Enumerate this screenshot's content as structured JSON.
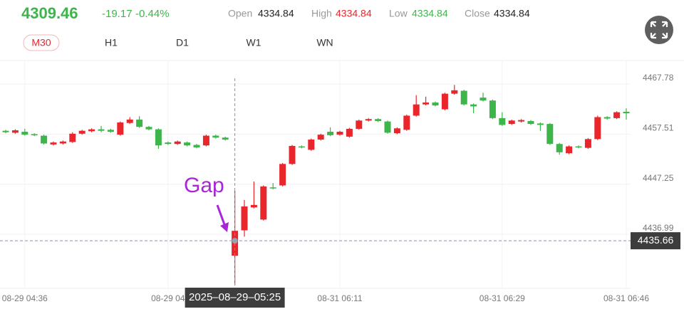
{
  "header": {
    "price": "4309.46",
    "change": "-19.17",
    "change_pct": "-0.44%",
    "stats": [
      {
        "label": "Open",
        "value": "4334.84"
      },
      {
        "label": "High",
        "value": "4334.84"
      },
      {
        "label": "Low",
        "value": "4334.84"
      },
      {
        "label": "Close",
        "value": "4334.84"
      }
    ],
    "timeframes": [
      "M30",
      "H1",
      "D1",
      "W1",
      "WN"
    ]
  },
  "chart_data": {
    "type": "candlestick",
    "up_color": "#e8262b",
    "down_color": "#3db54a",
    "ylim": [
      4425.9,
      4472.6
    ],
    "yticks": [
      4436.99,
      4447.25,
      4457.51,
      4467.78
    ],
    "categories": [
      null,
      null,
      "08-29 04:36",
      null,
      null,
      null,
      null,
      null,
      null,
      null,
      null,
      null,
      null,
      null,
      null,
      null,
      null,
      "08-29 04",
      null,
      null,
      null,
      null,
      null,
      null,
      null,
      null,
      null,
      null,
      null,
      null,
      null,
      null,
      null,
      null,
      null,
      "08-31 06:11",
      null,
      null,
      null,
      null,
      null,
      null,
      null,
      null,
      null,
      null,
      null,
      null,
      null,
      null,
      null,
      null,
      "08-31 06:29",
      null,
      null,
      null,
      null,
      null,
      null,
      null,
      null,
      null,
      null,
      null,
      null,
      "08-31 06:46"
    ],
    "open": [
      4458.2,
      4457.8,
      4458.0,
      4457.5,
      4457.2,
      4455.4,
      4455.6,
      4455.9,
      4457.6,
      4458.1,
      4458.5,
      4458.4,
      4457.4,
      4459.8,
      4460.5,
      4459.0,
      4458.5,
      4455.8,
      4455.5,
      4455.8,
      4455.3,
      4455.2,
      4457.2,
      4456.8,
      4432.6,
      4437.8,
      4442.5,
      4440.0,
      4446.6,
      4447.0,
      4451.4,
      4455.0,
      4454.3,
      4456.4,
      4458.0,
      4457.4,
      4457.0,
      4458.6,
      4460.3,
      4460.6,
      4460.1,
      4457.7,
      4458.4,
      4461.3,
      4463.6,
      4464.0,
      4462.6,
      4465.8,
      4466.4,
      4463.6,
      4465.0,
      4464.4,
      4460.8,
      4459.6,
      4460.1,
      4460.2,
      4459.7,
      4459.6,
      4455.5,
      4453.6,
      4455.0,
      4454.7,
      4456.5,
      4461.0,
      4460.8,
      4462.1
    ],
    "close": [
      4457.9,
      4458.3,
      4457.4,
      4457.3,
      4455.6,
      4455.8,
      4456.0,
      4457.6,
      4458.2,
      4458.5,
      4458.2,
      4458.0,
      4459.9,
      4460.5,
      4459.0,
      4458.5,
      4455.2,
      4455.5,
      4456.0,
      4455.2,
      4454.8,
      4457.2,
      4456.8,
      4456.4,
      4437.7,
      4442.7,
      4443.0,
      4446.8,
      4446.4,
      4451.4,
      4455.1,
      4454.8,
      4456.4,
      4457.4,
      4457.3,
      4458.0,
      4458.6,
      4460.3,
      4460.6,
      4460.2,
      4457.8,
      4458.7,
      4461.3,
      4463.6,
      4464.0,
      4463.4,
      4465.8,
      4466.5,
      4463.6,
      4463.2,
      4464.4,
      4460.8,
      4459.4,
      4460.3,
      4460.4,
      4459.6,
      4459.4,
      4455.5,
      4453.8,
      4455.0,
      4454.8,
      4456.5,
      4461.0,
      4460.7,
      4462.0,
      4461.8
    ],
    "high": [
      4458.4,
      4458.5,
      4458.6,
      4457.7,
      4457.4,
      4456.0,
      4456.2,
      4457.9,
      4458.4,
      4458.7,
      4459.2,
      4458.6,
      4460.1,
      4461.0,
      4461.2,
      4459.2,
      4458.7,
      4456.0,
      4456.2,
      4456.0,
      4455.5,
      4457.4,
      4457.4,
      4457.0,
      4445.9,
      4444.0,
      4447.8,
      4447.0,
      4447.5,
      4451.6,
      4455.3,
      4455.2,
      4456.6,
      4457.6,
      4458.9,
      4458.2,
      4458.8,
      4460.5,
      4460.8,
      4460.8,
      4460.3,
      4458.9,
      4461.5,
      4465.5,
      4465.2,
      4464.2,
      4466.0,
      4467.6,
      4466.6,
      4463.8,
      4466.0,
      4464.6,
      4462.0,
      4460.5,
      4460.6,
      4460.4,
      4459.9,
      4459.8,
      4455.7,
      4455.2,
      4455.2,
      4456.7,
      4461.3,
      4461.2,
      4462.2,
      4462.8
    ],
    "low": [
      4457.7,
      4457.6,
      4457.2,
      4457.1,
      4455.4,
      4455.2,
      4455.4,
      4455.7,
      4457.4,
      4457.9,
      4457.9,
      4457.8,
      4457.2,
      4459.6,
      4458.8,
      4458.3,
      4454.5,
      4455.3,
      4455.3,
      4455.0,
      4454.6,
      4455.0,
      4456.6,
      4456.2,
      4426.6,
      4436.5,
      4442.3,
      4439.8,
      4446.2,
      4446.8,
      4451.2,
      4454.6,
      4454.1,
      4456.2,
      4457.1,
      4457.2,
      4456.8,
      4458.4,
      4460.1,
      4460.0,
      4457.6,
      4457.5,
      4458.2,
      4461.1,
      4463.4,
      4463.2,
      4462.4,
      4465.6,
      4463.4,
      4461.8,
      4464.2,
      4460.6,
      4459.2,
      4459.4,
      4459.9,
      4459.4,
      4458.2,
      4455.3,
      4453.3,
      4453.4,
      4454.6,
      4454.5,
      4456.3,
      4460.5,
      4460.6,
      4460.5
    ],
    "crosshair": {
      "time": "2025–08–29–05:25",
      "price": 4435.66
    },
    "annotation": "Gap"
  }
}
